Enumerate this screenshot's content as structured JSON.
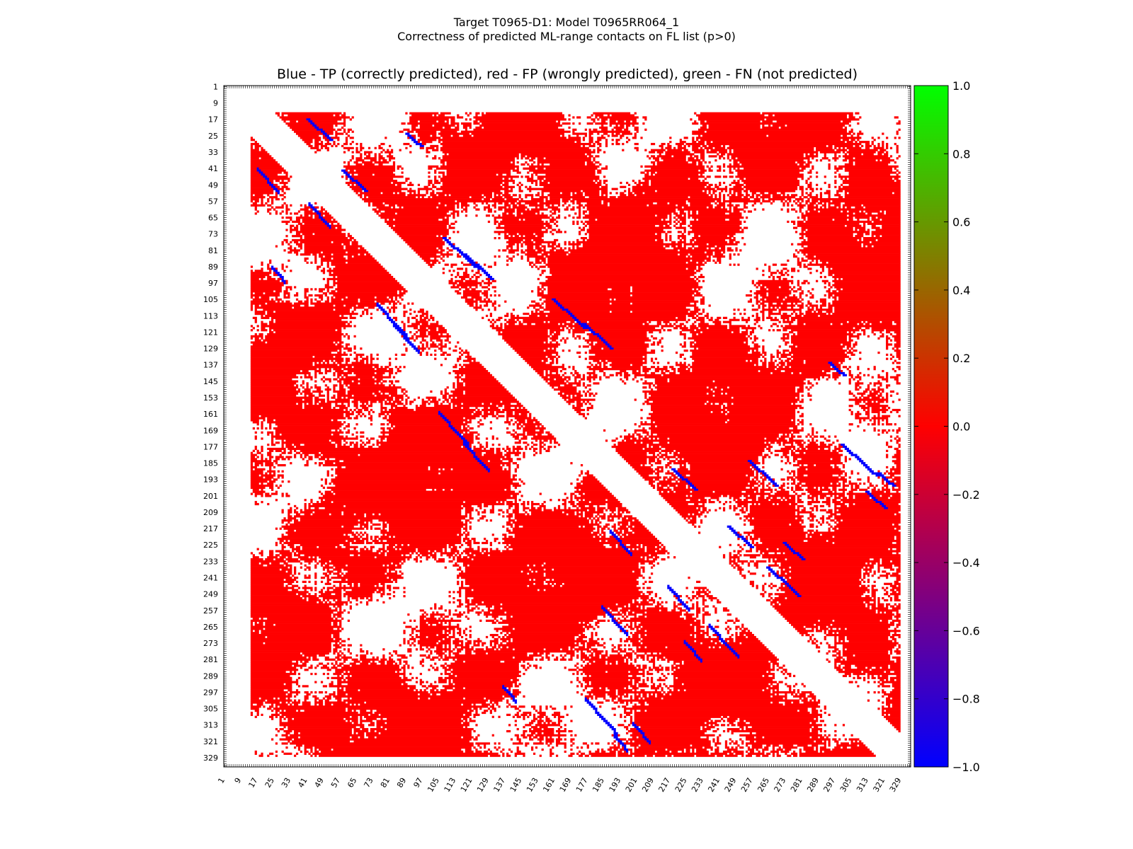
{
  "figure": {
    "title_line1": "Target T0965-D1: Model T0965RR064_1",
    "title_line2": "Correctness of predicted ML-range contacts on FL list (p>0)"
  },
  "chart_data": {
    "type": "heatmap",
    "title": "Blue - TP (correctly predicted), red - FP (wrongly predicted), green - FN (not predicted)",
    "xlabel": "",
    "ylabel": "",
    "n_residues": 333,
    "xlim": [
      1,
      333
    ],
    "ylim": [
      1,
      333
    ],
    "x_ticks": [
      1,
      9,
      17,
      25,
      33,
      41,
      49,
      57,
      65,
      73,
      81,
      89,
      97,
      105,
      113,
      121,
      129,
      137,
      145,
      153,
      161,
      169,
      177,
      185,
      193,
      201,
      209,
      217,
      225,
      233,
      241,
      249,
      257,
      265,
      273,
      281,
      289,
      297,
      305,
      313,
      321,
      329
    ],
    "y_ticks": [
      1,
      9,
      17,
      25,
      33,
      41,
      49,
      57,
      65,
      73,
      81,
      89,
      97,
      105,
      113,
      121,
      129,
      137,
      145,
      153,
      161,
      169,
      177,
      185,
      193,
      201,
      209,
      217,
      225,
      233,
      241,
      249,
      257,
      265,
      273,
      281,
      289,
      297,
      305,
      313,
      321,
      329
    ],
    "contact_region": {
      "first_residue": 14,
      "last_residue": 328,
      "min_separation": 12
    },
    "categories": [
      {
        "name": "TP",
        "value": -1.0,
        "color": "#0000ff"
      },
      {
        "name": "FP",
        "value": 0.0,
        "color": "#ff0000"
      },
      {
        "name": "FN",
        "value": 1.0,
        "color": "#00ff00"
      }
    ],
    "tp_contact_bands": [
      {
        "i_start": 41,
        "j_start": 17,
        "length": 12
      },
      {
        "i_start": 89,
        "j_start": 24,
        "length": 8
      },
      {
        "i_start": 58,
        "j_start": 42,
        "length": 12
      },
      {
        "i_start": 107,
        "j_start": 75,
        "length": 18
      },
      {
        "i_start": 117,
        "j_start": 83,
        "length": 14
      },
      {
        "i_start": 160,
        "j_start": 105,
        "length": 16
      },
      {
        "i_start": 175,
        "j_start": 117,
        "length": 14
      },
      {
        "i_start": 218,
        "j_start": 188,
        "length": 12
      },
      {
        "i_start": 245,
        "j_start": 216,
        "length": 12
      },
      {
        "i_start": 264,
        "j_start": 236,
        "length": 16
      },
      {
        "i_start": 300,
        "j_start": 176,
        "length": 18
      },
      {
        "i_start": 312,
        "j_start": 199,
        "length": 10
      },
      {
        "i_start": 255,
        "j_start": 184,
        "length": 14
      },
      {
        "i_start": 272,
        "j_start": 224,
        "length": 10
      },
      {
        "i_start": 294,
        "j_start": 136,
        "length": 8
      },
      {
        "i_start": 318,
        "j_start": 190,
        "length": 8
      }
    ],
    "colorbar": {
      "min": -1.0,
      "max": 1.0,
      "ticks": [
        -1.0,
        -0.8,
        -0.6,
        -0.4,
        -0.2,
        0.0,
        0.2,
        0.4,
        0.6,
        0.8,
        1.0
      ],
      "tick_labels": [
        "−1.0",
        "−0.8",
        "−0.6",
        "−0.4",
        "−0.2",
        "0.0",
        "0.2",
        "0.4",
        "0.6",
        "0.8",
        "1.0"
      ],
      "colors": [
        "#0000ff",
        "#ff0000",
        "#00ff00"
      ]
    }
  }
}
